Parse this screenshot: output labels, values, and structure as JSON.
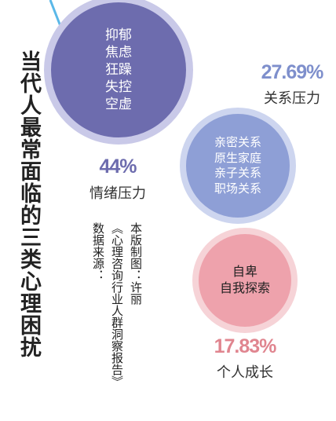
{
  "title": "当代人最常面临的三类心理困扰",
  "credit": {
    "author": "本版制图：许丽",
    "source_label": "数据来源：",
    "source_text": "《心理咨询行业人群洞察报告》"
  },
  "colors": {
    "emotion_fill": "#6d6cae",
    "emotion_ring": "#c9c9e8",
    "emotion_pct": "#6d6cae",
    "relation_fill": "#8e9fd6",
    "relation_ring": "#cdd5ef",
    "relation_pct": "#7e8fcc",
    "growth_fill": "#eea2ac",
    "growth_ring": "#f6d3d7",
    "growth_pct": "#e0858f",
    "accent_line": "#5ab8e8",
    "title": "#222222"
  },
  "categories": [
    {
      "name": "情绪压力",
      "percent": "44%",
      "items": [
        "抑郁",
        "焦虑",
        "狂躁",
        "失控",
        "空虚"
      ]
    },
    {
      "name": "关系压力",
      "percent": "27.69%",
      "items": [
        "亲密关系",
        "原生家庭",
        "亲子关系",
        "职场关系"
      ]
    },
    {
      "name": "个人成长",
      "percent": "17.83%",
      "items": [
        "自卑",
        "自我探索"
      ]
    }
  ]
}
